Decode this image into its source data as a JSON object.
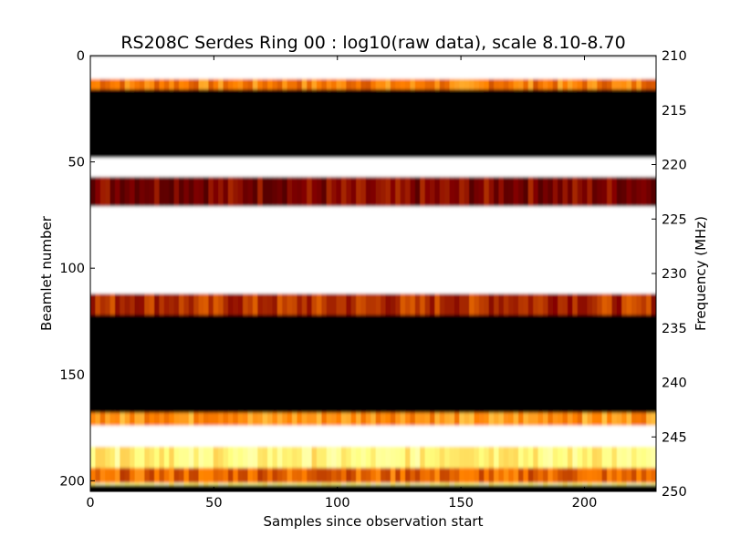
{
  "chart_data": {
    "type": "heatmap",
    "title": "RS208C Serdes Ring 00 : log10(raw data), scale 8.10-8.70",
    "xlabel": "Samples since observation start",
    "ylabel": "Beamlet number",
    "y2label": "Frequency (MHz)",
    "xlim": [
      0,
      229
    ],
    "ylim": [
      0,
      205
    ],
    "y2lim": [
      210,
      250
    ],
    "y_inverted": true,
    "y2_inverted": true,
    "x_ticks": [
      "0",
      "50",
      "100",
      "150",
      "200"
    ],
    "y_ticks": [
      "0",
      "50",
      "100",
      "150",
      "200"
    ],
    "y2_ticks": [
      "210",
      "215",
      "220",
      "225",
      "230",
      "235",
      "240",
      "245",
      "250"
    ],
    "colormap": "afmhot",
    "color_scale": {
      "log10_min": 8.1,
      "log10_max": 8.7
    },
    "grid": false,
    "legend": "none",
    "bands": [
      {
        "beamlet_start": 0,
        "beamlet_end": 11,
        "level": 1.0
      },
      {
        "beamlet_start": 11,
        "beamlet_end": 16,
        "level": 0.5
      },
      {
        "beamlet_start": 16,
        "beamlet_end": 48,
        "level": 0.0
      },
      {
        "beamlet_start": 48,
        "beamlet_end": 57,
        "level": 1.0
      },
      {
        "beamlet_start": 57,
        "beamlet_end": 71,
        "level": 0.25
      },
      {
        "beamlet_start": 71,
        "beamlet_end": 112,
        "level": 1.0
      },
      {
        "beamlet_start": 112,
        "beamlet_end": 122,
        "level": 0.35
      },
      {
        "beamlet_start": 122,
        "beamlet_end": 168,
        "level": 0.0
      },
      {
        "beamlet_start": 168,
        "beamlet_end": 174,
        "level": 0.55
      },
      {
        "beamlet_start": 174,
        "beamlet_end": 184,
        "level": 1.0
      },
      {
        "beamlet_start": 184,
        "beamlet_end": 194,
        "level": 0.75
      },
      {
        "beamlet_start": 194,
        "beamlet_end": 201,
        "level": 0.45
      },
      {
        "beamlet_start": 201,
        "beamlet_end": 202,
        "level": 0.8
      },
      {
        "beamlet_start": 202,
        "beamlet_end": 205,
        "level": 0.0
      }
    ]
  }
}
